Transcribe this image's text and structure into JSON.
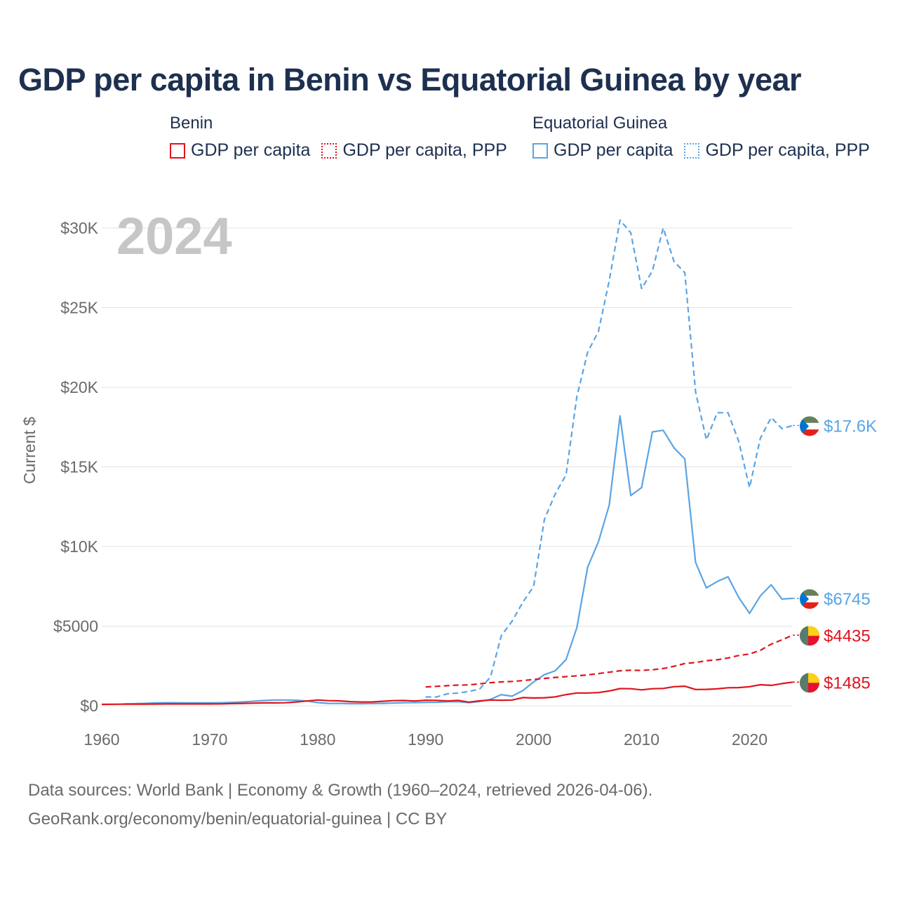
{
  "title": "GDP per capita in Benin vs Equatorial Guinea by year",
  "legend": {
    "groups": [
      {
        "name": "Benin",
        "items": [
          "GDP per capita",
          "GDP per capita, PPP"
        ]
      },
      {
        "name": "Equatorial Guinea",
        "items": [
          "GDP per capita",
          "GDP per capita, PPP"
        ]
      }
    ]
  },
  "footer": {
    "line1": "Data sources: World Bank | Economy & Growth (1960–2024, retrieved 2026-04-06).",
    "line2": "GeoRank.org/economy/benin/equatorial-guinea | CC BY"
  },
  "colors": {
    "benin": "#e0141d",
    "eqguinea": "#5aa4e4",
    "title": "#1e3050"
  },
  "chart_data": {
    "type": "line",
    "year_label": "2024",
    "ylabel": "Current $",
    "xlim": [
      1960,
      2024
    ],
    "ylim": [
      0,
      30000
    ],
    "x_ticks": [
      1960,
      1970,
      1980,
      1990,
      2000,
      2010,
      2020
    ],
    "y_ticks": [
      {
        "value": 0,
        "label": "$0"
      },
      {
        "value": 5000,
        "label": "$5000"
      },
      {
        "value": 10000,
        "label": "$10K"
      },
      {
        "value": 15000,
        "label": "$15K"
      },
      {
        "value": 20000,
        "label": "$20K"
      },
      {
        "value": 25000,
        "label": "$25K"
      },
      {
        "value": 30000,
        "label": "$30K"
      }
    ],
    "grid": true,
    "series": [
      {
        "name": "Equatorial Guinea GDP per capita, PPP",
        "country": "Equatorial Guinea",
        "style": "dashed",
        "color": "#5aa4e4",
        "end_label": "$17.6K",
        "x": [
          1990,
          1991,
          1992,
          1993,
          1994,
          1995,
          1996,
          1997,
          1998,
          1999,
          2000,
          2001,
          2002,
          2003,
          2004,
          2005,
          2006,
          2007,
          2008,
          2009,
          2010,
          2011,
          2012,
          2013,
          2014,
          2015,
          2016,
          2017,
          2018,
          2019,
          2020,
          2021,
          2022,
          2023,
          2024
        ],
        "values": [
          550,
          550,
          750,
          800,
          900,
          1050,
          1800,
          4400,
          5300,
          6500,
          7500,
          11700,
          13300,
          14500,
          19400,
          22200,
          23500,
          26700,
          30500,
          29700,
          26200,
          27300,
          30000,
          27900,
          27200,
          19700,
          16700,
          18400,
          18400,
          16600,
          13700,
          16800,
          18100,
          17400,
          17600
        ]
      },
      {
        "name": "Equatorial Guinea GDP per capita",
        "country": "Equatorial Guinea",
        "style": "solid",
        "color": "#5aa4e4",
        "end_label": "$6745",
        "x": [
          1962,
          1963,
          1964,
          1965,
          1966,
          1967,
          1968,
          1969,
          1970,
          1971,
          1972,
          1973,
          1974,
          1975,
          1976,
          1977,
          1978,
          1979,
          1980,
          1981,
          1982,
          1983,
          1984,
          1985,
          1986,
          1987,
          1988,
          1989,
          1990,
          1991,
          1992,
          1993,
          1994,
          1995,
          1996,
          1997,
          1998,
          1999,
          2000,
          2001,
          2002,
          2003,
          2004,
          2005,
          2006,
          2007,
          2008,
          2009,
          2010,
          2011,
          2012,
          2013,
          2014,
          2015,
          2016,
          2017,
          2018,
          2019,
          2020,
          2021,
          2022,
          2023,
          2024
        ],
        "values": [
          120,
          130,
          150,
          180,
          190,
          190,
          180,
          180,
          180,
          190,
          210,
          240,
          280,
          330,
          360,
          360,
          350,
          300,
          200,
          150,
          150,
          130,
          130,
          140,
          150,
          170,
          190,
          200,
          210,
          220,
          250,
          250,
          200,
          270,
          400,
          700,
          600,
          950,
          1500,
          1950,
          2200,
          2900,
          4900,
          8700,
          10300,
          12600,
          18200,
          13200,
          13700,
          17200,
          17300,
          16200,
          15500,
          9000,
          7400,
          7800,
          8100,
          6800,
          5800,
          6900,
          7600,
          6700,
          6745
        ]
      },
      {
        "name": "Benin GDP per capita, PPP",
        "country": "Benin",
        "style": "dashed",
        "color": "#e0141d",
        "end_label": "$4435",
        "x": [
          1990,
          1991,
          1992,
          1993,
          1994,
          1995,
          1996,
          1997,
          1998,
          1999,
          2000,
          2001,
          2002,
          2003,
          2004,
          2005,
          2006,
          2007,
          2008,
          2009,
          2010,
          2011,
          2012,
          2013,
          2014,
          2015,
          2016,
          2017,
          2018,
          2019,
          2020,
          2021,
          2022,
          2023,
          2024
        ],
        "values": [
          1180,
          1220,
          1260,
          1300,
          1310,
          1380,
          1450,
          1500,
          1530,
          1580,
          1650,
          1720,
          1780,
          1830,
          1880,
          1940,
          2020,
          2110,
          2200,
          2230,
          2220,
          2260,
          2340,
          2480,
          2650,
          2720,
          2830,
          2890,
          3000,
          3160,
          3250,
          3480,
          3870,
          4140,
          4435
        ]
      },
      {
        "name": "Benin GDP per capita",
        "country": "Benin",
        "style": "solid",
        "color": "#e0141d",
        "end_label": "$1485",
        "x": [
          1960,
          1961,
          1962,
          1963,
          1964,
          1965,
          1966,
          1967,
          1968,
          1969,
          1970,
          1971,
          1972,
          1973,
          1974,
          1975,
          1976,
          1977,
          1978,
          1979,
          1980,
          1981,
          1982,
          1983,
          1984,
          1985,
          1986,
          1987,
          1988,
          1989,
          1990,
          1991,
          1992,
          1993,
          1994,
          1995,
          1996,
          1997,
          1998,
          1999,
          2000,
          2001,
          2002,
          2003,
          2004,
          2005,
          2006,
          2007,
          2008,
          2009,
          2010,
          2011,
          2012,
          2013,
          2014,
          2015,
          2016,
          2017,
          2018,
          2019,
          2020,
          2021,
          2022,
          2023,
          2024
        ],
        "values": [
          90,
          95,
          100,
          100,
          105,
          110,
          115,
          115,
          115,
          115,
          115,
          120,
          135,
          150,
          165,
          180,
          180,
          190,
          240,
          300,
          360,
          320,
          310,
          260,
          240,
          240,
          280,
          320,
          330,
          300,
          350,
          340,
          300,
          340,
          230,
          310,
          360,
          350,
          360,
          510,
          490,
          500,
          560,
          700,
          800,
          800,
          830,
          930,
          1080,
          1070,
          1000,
          1070,
          1090,
          1200,
          1230,
          1020,
          1030,
          1060,
          1130,
          1140,
          1200,
          1320,
          1280,
          1390,
          1485
        ]
      }
    ]
  }
}
